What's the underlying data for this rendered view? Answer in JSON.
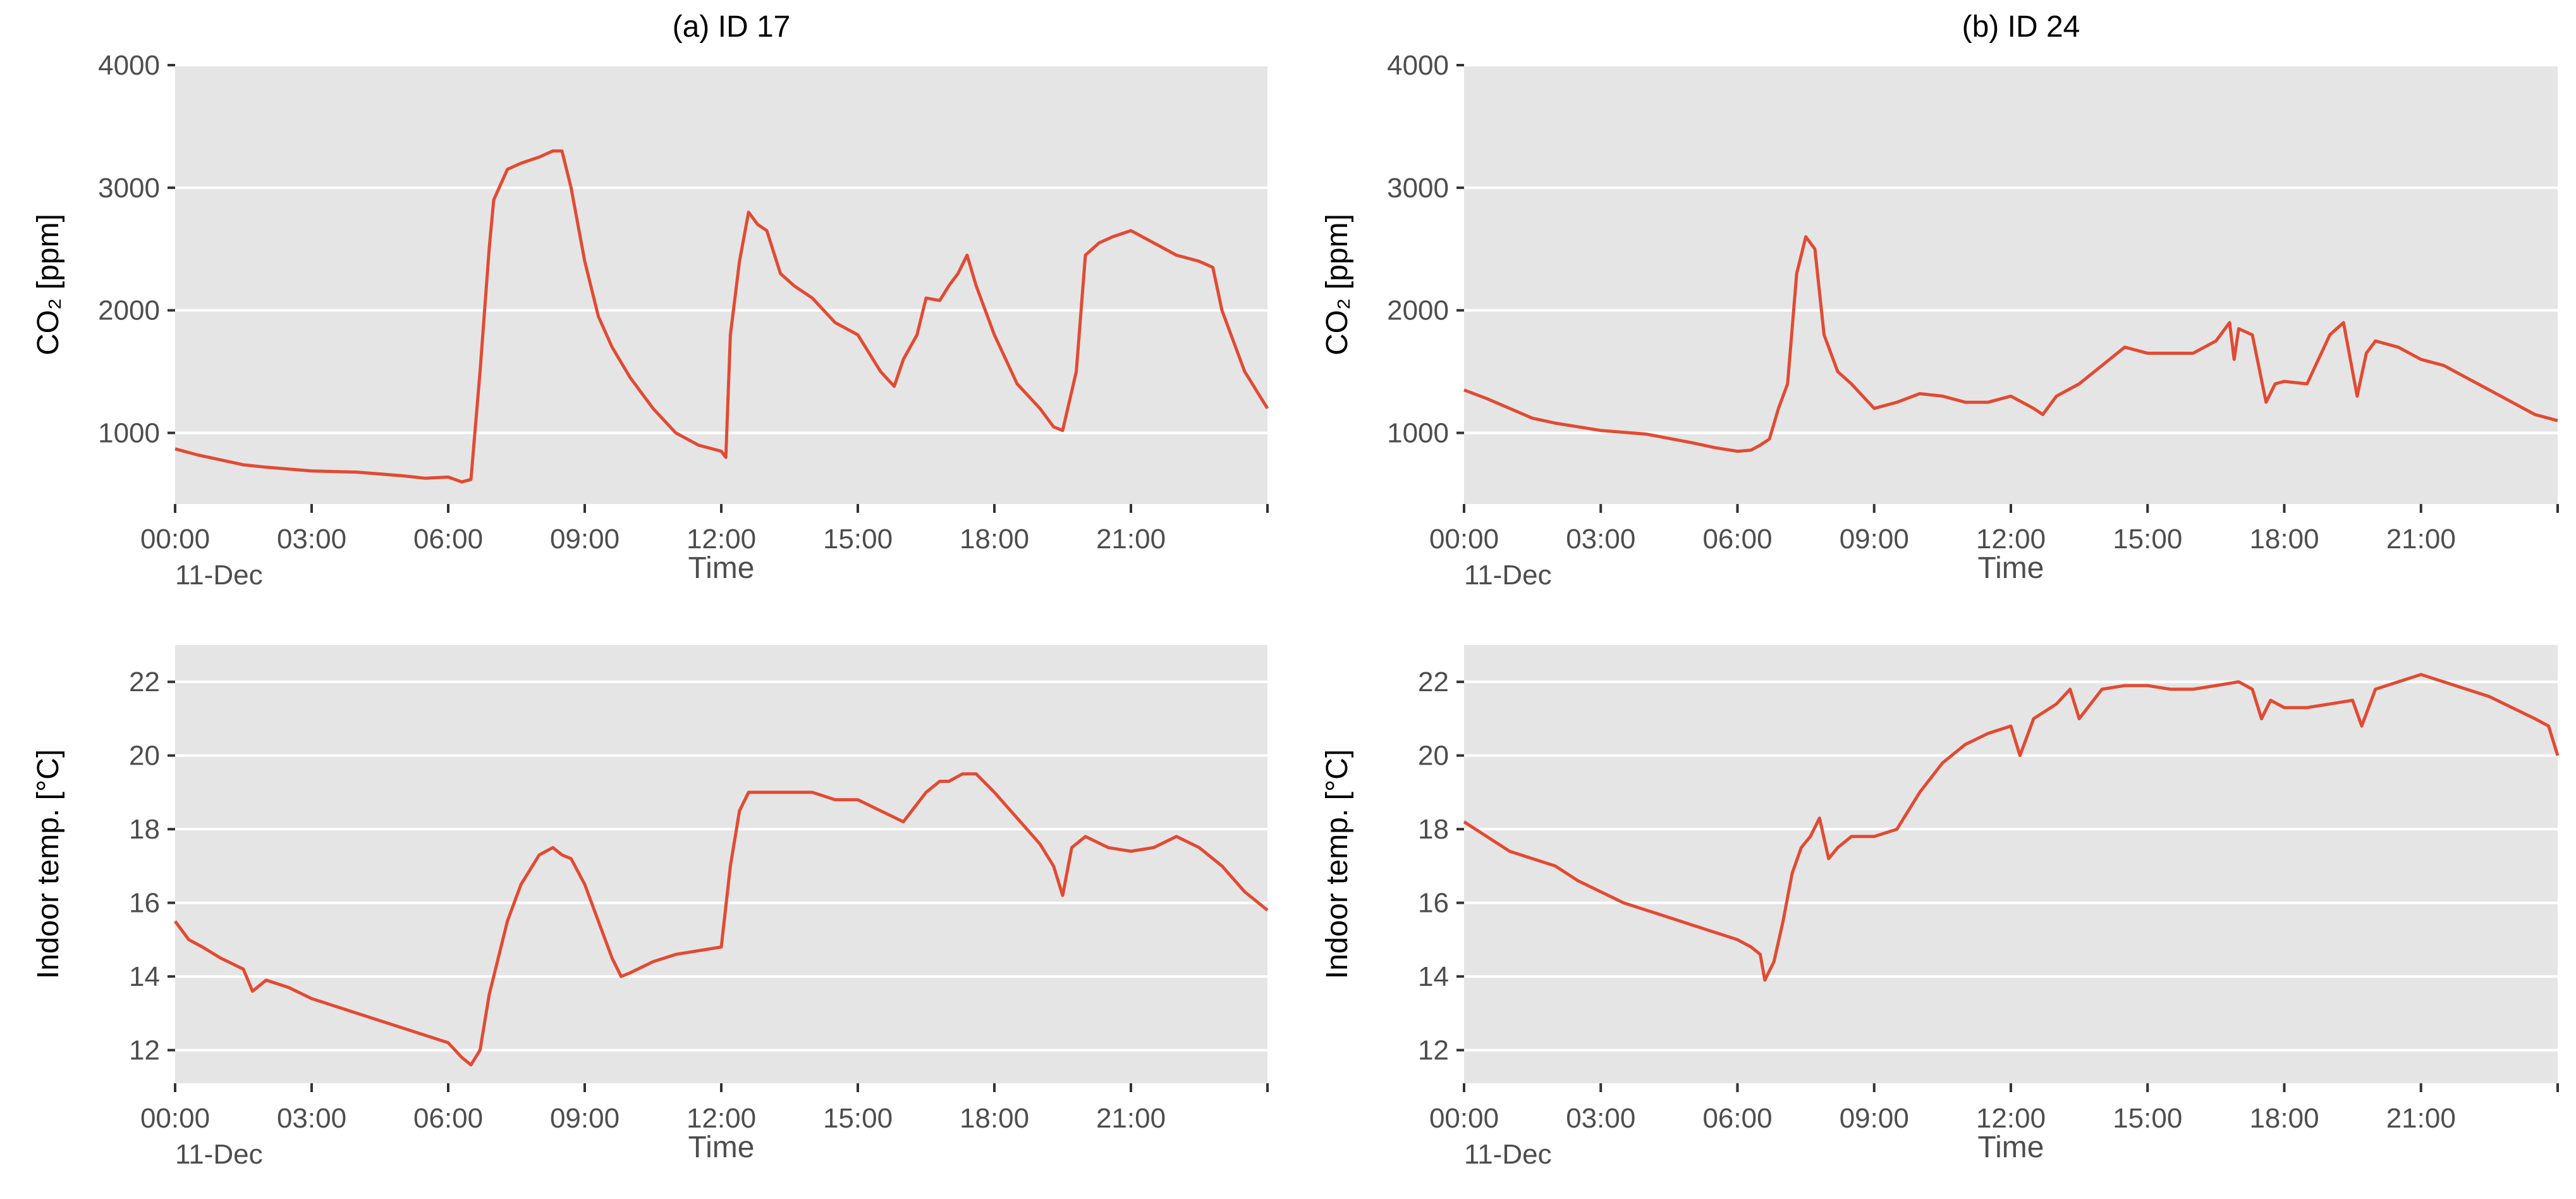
{
  "figure": {
    "panel_titles": [
      "(a) ID 17",
      "(b) ID 24"
    ],
    "line_color": "#E24A33",
    "panel_background": "#E5E5E5",
    "grid_color": "#FFFFFF"
  },
  "chart_data": [
    {
      "type": "line",
      "title": "(a) ID 17",
      "xlabel": "Time",
      "ylabel": "CO₂ [ppm]",
      "x_unit": "hours from 00:00 11-Dec",
      "xlim": [
        0,
        24
      ],
      "x_tick_labels": [
        "00:00",
        "03:00",
        "06:00",
        "09:00",
        "12:00",
        "15:00",
        "18:00",
        "21:00"
      ],
      "x_first_tick_sublabel": "11-Dec",
      "ylim": [
        420,
        4000
      ],
      "y_ticks": [
        1000,
        2000,
        3000,
        4000
      ],
      "grid": "horizontal",
      "series": [
        {
          "x": [
            0,
            0.5,
            1,
            1.5,
            2,
            3,
            4,
            5,
            5.5,
            6,
            6.3,
            6.5,
            6.7,
            6.9,
            7.0,
            7.3,
            7.6,
            8.0,
            8.3,
            8.5,
            8.7,
            9.0,
            9.3,
            9.6,
            10.0,
            10.5,
            11.0,
            11.5,
            12.0,
            12.1,
            12.2,
            12.4,
            12.6,
            12.8,
            13.0,
            13.3,
            13.6,
            14.0,
            14.5,
            15.0,
            15.5,
            15.8,
            16.0,
            16.3,
            16.5,
            16.8,
            17.0,
            17.2,
            17.4,
            17.6,
            18.0,
            18.5,
            19.0,
            19.3,
            19.5,
            19.8,
            20.0,
            20.3,
            20.6,
            21.0,
            21.5,
            22.0,
            22.5,
            22.8,
            23.0,
            23.5,
            24.0
          ],
          "values": [
            870,
            820,
            780,
            740,
            720,
            690,
            680,
            650,
            630,
            640,
            600,
            620,
            1500,
            2500,
            2900,
            3150,
            3200,
            3250,
            3300,
            3300,
            3000,
            2400,
            1950,
            1700,
            1450,
            1200,
            1000,
            900,
            850,
            800,
            1800,
            2400,
            2800,
            2700,
            2650,
            2300,
            2200,
            2100,
            1900,
            1800,
            1500,
            1380,
            1600,
            1800,
            2100,
            2080,
            2200,
            2300,
            2450,
            2200,
            1800,
            1400,
            1200,
            1050,
            1020,
            1500,
            2450,
            2550,
            2600,
            2650,
            2550,
            2450,
            2400,
            2350,
            2000,
            1500,
            1200
          ]
        }
      ]
    },
    {
      "type": "line",
      "title": "(b) ID 24",
      "xlabel": "Time",
      "ylabel": "CO₂ [ppm]",
      "x_unit": "hours from 00:00 11-Dec",
      "xlim": [
        0,
        24
      ],
      "x_tick_labels": [
        "00:00",
        "03:00",
        "06:00",
        "09:00",
        "12:00",
        "15:00",
        "18:00",
        "21:00"
      ],
      "x_first_tick_sublabel": "11-Dec",
      "ylim": [
        420,
        4000
      ],
      "y_ticks": [
        1000,
        2000,
        3000,
        4000
      ],
      "grid": "horizontal",
      "series": [
        {
          "x": [
            0,
            0.5,
            1,
            1.5,
            2,
            3,
            4,
            5,
            5.5,
            6,
            6.3,
            6.5,
            6.7,
            6.9,
            7.1,
            7.3,
            7.5,
            7.7,
            7.9,
            8.2,
            8.5,
            9.0,
            9.5,
            10.0,
            10.5,
            11.0,
            11.5,
            12.0,
            12.5,
            12.7,
            13.0,
            13.5,
            14.0,
            14.5,
            15.0,
            15.5,
            16.0,
            16.5,
            16.8,
            16.9,
            17.0,
            17.3,
            17.6,
            17.8,
            18.0,
            18.5,
            19.0,
            19.3,
            19.6,
            19.8,
            20.0,
            20.5,
            21.0,
            21.5,
            22.0,
            22.5,
            23.0,
            23.5,
            24.0
          ],
          "values": [
            1350,
            1280,
            1200,
            1120,
            1080,
            1020,
            990,
            920,
            880,
            850,
            860,
            900,
            950,
            1200,
            1400,
            2300,
            2600,
            2500,
            1800,
            1500,
            1400,
            1200,
            1250,
            1320,
            1300,
            1250,
            1250,
            1300,
            1200,
            1150,
            1300,
            1400,
            1550,
            1700,
            1650,
            1650,
            1650,
            1750,
            1900,
            1600,
            1850,
            1800,
            1250,
            1400,
            1420,
            1400,
            1800,
            1900,
            1300,
            1650,
            1750,
            1700,
            1600,
            1550,
            1450,
            1350,
            1250,
            1150,
            1100
          ]
        }
      ]
    },
    {
      "type": "line",
      "title": "",
      "xlabel": "Time",
      "ylabel": "Indoor temp. [°C]",
      "x_unit": "hours from 00:00 11-Dec",
      "xlim": [
        0,
        24
      ],
      "x_tick_labels": [
        "00:00",
        "03:00",
        "06:00",
        "09:00",
        "12:00",
        "15:00",
        "18:00",
        "21:00"
      ],
      "x_first_tick_sublabel": "11-Dec",
      "ylim": [
        11.1,
        23.0
      ],
      "y_ticks": [
        12,
        14,
        16,
        18,
        20,
        22
      ],
      "grid": "horizontal",
      "series": [
        {
          "x": [
            0,
            0.3,
            0.6,
            1,
            1.5,
            1.7,
            2,
            2.5,
            3,
            3.5,
            4,
            4.5,
            5,
            5.5,
            6,
            6.3,
            6.5,
            6.7,
            6.9,
            7.1,
            7.3,
            7.6,
            8.0,
            8.3,
            8.5,
            8.7,
            9.0,
            9.3,
            9.6,
            9.8,
            10.0,
            10.5,
            11.0,
            11.5,
            12.0,
            12.2,
            12.4,
            12.6,
            13.0,
            13.5,
            14.0,
            14.5,
            15.0,
            15.5,
            16.0,
            16.5,
            16.8,
            17.0,
            17.3,
            17.6,
            18.0,
            18.5,
            19.0,
            19.3,
            19.5,
            19.7,
            20.0,
            20.5,
            21.0,
            21.5,
            22.0,
            22.5,
            23.0,
            23.5,
            24.0
          ],
          "values": [
            15.5,
            15.0,
            14.8,
            14.5,
            14.2,
            13.6,
            13.9,
            13.7,
            13.4,
            13.2,
            13.0,
            12.8,
            12.6,
            12.4,
            12.2,
            11.8,
            11.6,
            12.0,
            13.5,
            14.5,
            15.5,
            16.5,
            17.3,
            17.5,
            17.3,
            17.2,
            16.5,
            15.5,
            14.5,
            14.0,
            14.1,
            14.4,
            14.6,
            14.7,
            14.8,
            17.0,
            18.5,
            19.0,
            19.0,
            19.0,
            19.0,
            18.8,
            18.8,
            18.5,
            18.2,
            19.0,
            19.3,
            19.3,
            19.5,
            19.5,
            19.0,
            18.3,
            17.6,
            17.0,
            16.2,
            17.5,
            17.8,
            17.5,
            17.4,
            17.5,
            17.8,
            17.5,
            17.0,
            16.3,
            15.8
          ]
        }
      ]
    },
    {
      "type": "line",
      "title": "",
      "xlabel": "Time",
      "ylabel": "Indoor temp. [°C]",
      "x_unit": "hours from 00:00 11-Dec",
      "xlim": [
        0,
        24
      ],
      "x_tick_labels": [
        "00:00",
        "03:00",
        "06:00",
        "09:00",
        "12:00",
        "15:00",
        "18:00",
        "21:00"
      ],
      "x_first_tick_sublabel": "11-Dec",
      "ylim": [
        11.1,
        23.0
      ],
      "y_ticks": [
        12,
        14,
        16,
        18,
        20,
        22
      ],
      "grid": "horizontal",
      "series": [
        {
          "x": [
            0,
            0.5,
            1,
            1.5,
            2,
            2.5,
            3,
            3.5,
            4,
            4.5,
            5,
            5.5,
            6,
            6.3,
            6.5,
            6.6,
            6.8,
            7.0,
            7.2,
            7.4,
            7.6,
            7.8,
            8.0,
            8.2,
            8.5,
            9.0,
            9.5,
            10.0,
            10.5,
            11.0,
            11.5,
            12.0,
            12.2,
            12.5,
            13.0,
            13.3,
            13.5,
            14.0,
            14.5,
            15.0,
            15.5,
            16.0,
            16.5,
            17.0,
            17.3,
            17.5,
            17.7,
            18.0,
            18.5,
            19.0,
            19.5,
            19.7,
            20.0,
            20.5,
            21.0,
            21.5,
            22.0,
            22.5,
            23.0,
            23.5,
            23.8,
            24.0
          ],
          "values": [
            18.2,
            17.8,
            17.4,
            17.2,
            17.0,
            16.6,
            16.3,
            16.0,
            15.8,
            15.6,
            15.4,
            15.2,
            15.0,
            14.8,
            14.6,
            13.9,
            14.4,
            15.5,
            16.8,
            17.5,
            17.8,
            18.3,
            17.2,
            17.5,
            17.8,
            17.8,
            18.0,
            19.0,
            19.8,
            20.3,
            20.6,
            20.8,
            20.0,
            21.0,
            21.4,
            21.8,
            21.0,
            21.8,
            21.9,
            21.9,
            21.8,
            21.8,
            21.9,
            22.0,
            21.8,
            21.0,
            21.5,
            21.3,
            21.3,
            21.4,
            21.5,
            20.8,
            21.8,
            22.0,
            22.2,
            22.0,
            21.8,
            21.6,
            21.3,
            21.0,
            20.8,
            20.0
          ]
        }
      ]
    }
  ]
}
